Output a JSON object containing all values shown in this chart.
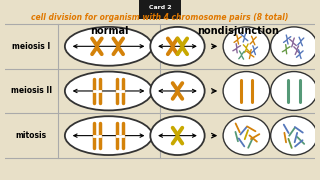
{
  "title": "cell division for organism with 4 chromosome pairs (8 total)",
  "card_label": "Card 2",
  "bg_color": "#e8e0c8",
  "title_color": "#e07800",
  "card_bg": "#1a1a1a",
  "card_text_color": "#ffffff",
  "header_normal": "normal",
  "header_nondisj": "nondisjunction",
  "row_labels": [
    "meiosis I",
    "meiosis II",
    "mitosis"
  ],
  "grid_line_color": "#aaaaaa",
  "chr_orange": "#d4820a",
  "chr_gold": "#c8a800",
  "chr_blue": "#5577bb",
  "chr_teal": "#559977",
  "chr_purple": "#886699",
  "chr_green": "#669944"
}
